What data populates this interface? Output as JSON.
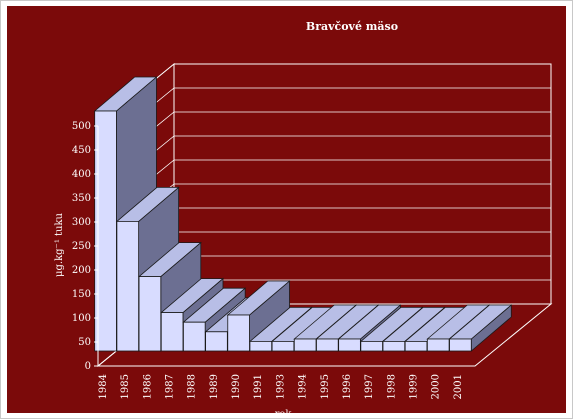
{
  "chart_data": {
    "type": "bar",
    "title": "Bravčové mäso",
    "xlabel": "rok",
    "ylabel": "μg.kg⁻¹ tuku",
    "categories": [
      "1984",
      "1985",
      "1986",
      "1987",
      "1988",
      "1989",
      "1990",
      "1991",
      "1993",
      "1994",
      "1995",
      "1996",
      "1997",
      "1998",
      "1999",
      "2000",
      "2001"
    ],
    "values": [
      500,
      270,
      155,
      80,
      60,
      40,
      75,
      20,
      20,
      25,
      25,
      25,
      20,
      20,
      20,
      25,
      25
    ],
    "ylim": [
      0,
      500
    ],
    "yticks": [
      0,
      50,
      100,
      150,
      200,
      250,
      300,
      350,
      400,
      450,
      500
    ],
    "grid": true,
    "colors": {
      "background": "#7b0a0a",
      "bar_front": "#d8dcff",
      "bar_top": "#b8bee6",
      "bar_side": "#6c6f92",
      "wall": "#6b6d8a",
      "grid": "#ffffff"
    }
  }
}
